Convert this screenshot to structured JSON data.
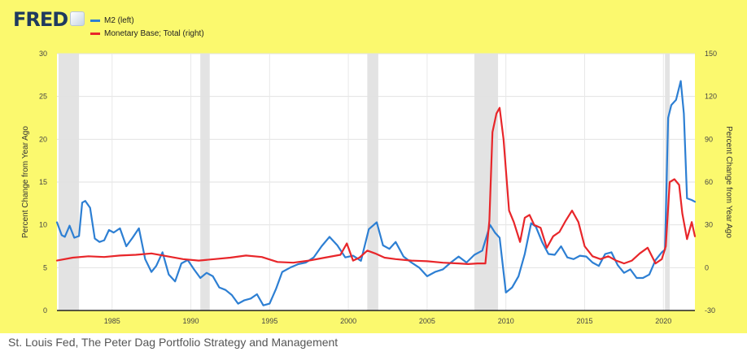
{
  "logo": {
    "text": "FRED"
  },
  "caption": "St. Louis Fed, The Peter Dag Portfolio Strategy and Management",
  "chart_data": {
    "type": "line",
    "xlabel": "",
    "ylabel_left": "Percent Change from Year Ago",
    "ylabel_right": "Percent Change from Year Ago",
    "xlim": [
      1981.5,
      2022.0
    ],
    "ylim_left": [
      0,
      30
    ],
    "ylim_right": [
      -30,
      150
    ],
    "x_ticks": [
      "1985",
      "1990",
      "1995",
      "2000",
      "2005",
      "2010",
      "2015",
      "2020"
    ],
    "y_ticks_left": [
      "0",
      "5",
      "10",
      "15",
      "20",
      "25",
      "30"
    ],
    "y_ticks_right": [
      "-30",
      "0",
      "30",
      "60",
      "90",
      "120",
      "150"
    ],
    "grid": true,
    "legend": "top-left",
    "recessions": [
      [
        1981.6,
        1982.9
      ],
      [
        1990.6,
        1991.2
      ],
      [
        2001.2,
        2001.9
      ],
      [
        2008.0,
        2009.5
      ],
      [
        2020.1,
        2020.4
      ]
    ],
    "series": [
      {
        "name": "M2 (left)",
        "axis": "left",
        "color": "#2d7fd3",
        "x": [
          1981.5,
          1981.8,
          1982.0,
          1982.3,
          1982.6,
          1982.9,
          1983.1,
          1983.3,
          1983.6,
          1983.9,
          1984.2,
          1984.5,
          1984.8,
          1985.1,
          1985.5,
          1985.9,
          1986.3,
          1986.7,
          1987.1,
          1987.5,
          1987.8,
          1988.2,
          1988.6,
          1989.0,
          1989.4,
          1989.8,
          1990.2,
          1990.6,
          1991.0,
          1991.4,
          1991.8,
          1992.2,
          1992.6,
          1993.0,
          1993.4,
          1993.8,
          1994.2,
          1994.6,
          1995.0,
          1995.4,
          1995.8,
          1996.3,
          1996.8,
          1997.3,
          1997.8,
          1998.3,
          1998.8,
          1999.3,
          1999.8,
          2000.3,
          2000.8,
          2001.3,
          2001.8,
          2002.2,
          2002.6,
          2003.0,
          2003.5,
          2004.0,
          2004.5,
          2005.0,
          2005.5,
          2006.0,
          2006.5,
          2007.0,
          2007.5,
          2008.0,
          2008.5,
          2009.0,
          2009.3,
          2009.6,
          2010.0,
          2010.4,
          2010.8,
          2011.2,
          2011.6,
          2011.9,
          2012.3,
          2012.7,
          2013.1,
          2013.5,
          2013.9,
          2014.3,
          2014.7,
          2015.1,
          2015.5,
          2015.9,
          2016.3,
          2016.7,
          2017.1,
          2017.5,
          2017.9,
          2018.3,
          2018.7,
          2019.1,
          2019.5,
          2019.9,
          2020.1,
          2020.3,
          2020.5,
          2020.8,
          2021.1,
          2021.3,
          2021.5,
          2021.8,
          2022.0
        ],
        "values": [
          10.3,
          8.8,
          8.6,
          9.9,
          8.5,
          8.7,
          12.6,
          12.8,
          12.0,
          8.4,
          8.0,
          8.2,
          9.4,
          9.1,
          9.6,
          7.5,
          8.5,
          9.6,
          6.0,
          4.5,
          5.2,
          6.8,
          4.2,
          3.4,
          5.5,
          5.9,
          4.8,
          3.8,
          4.4,
          4.0,
          2.7,
          2.4,
          1.8,
          0.8,
          1.2,
          1.4,
          1.9,
          0.6,
          0.8,
          2.5,
          4.5,
          5.0,
          5.4,
          5.6,
          6.2,
          7.5,
          8.6,
          7.6,
          6.2,
          6.4,
          5.8,
          9.5,
          10.3,
          7.6,
          7.2,
          8.0,
          6.3,
          5.6,
          5.0,
          4.0,
          4.5,
          4.8,
          5.6,
          6.3,
          5.6,
          6.5,
          7.0,
          10.0,
          9.1,
          8.5,
          2.1,
          2.7,
          4.0,
          6.6,
          10.2,
          9.8,
          8.0,
          6.6,
          6.5,
          7.5,
          6.2,
          6.0,
          6.4,
          6.3,
          5.6,
          5.2,
          6.6,
          6.8,
          5.3,
          4.4,
          4.8,
          3.8,
          3.8,
          4.2,
          5.9,
          6.8,
          7.1,
          22.5,
          24.0,
          24.6,
          26.8,
          23.0,
          13.1,
          12.9,
          12.7
        ]
      },
      {
        "name": "Monetary Base; Total (right)",
        "axis": "right",
        "color": "#e8262a",
        "x": [
          1981.5,
          1982.5,
          1983.5,
          1984.5,
          1985.5,
          1986.5,
          1987.5,
          1988.5,
          1989.5,
          1990.5,
          1991.5,
          1992.5,
          1993.5,
          1994.5,
          1995.5,
          1996.5,
          1997.5,
          1998.5,
          1999.5,
          1999.9,
          2000.3,
          2000.7,
          2001.2,
          2001.7,
          2002.3,
          2003.0,
          2004.0,
          2005.0,
          2006.0,
          2007.0,
          2007.6,
          2008.2,
          2008.7,
          2008.95,
          2009.15,
          2009.4,
          2009.6,
          2009.85,
          2010.2,
          2010.5,
          2010.9,
          2011.2,
          2011.5,
          2011.8,
          2012.2,
          2012.6,
          2013.0,
          2013.4,
          2013.8,
          2014.2,
          2014.6,
          2015.0,
          2015.5,
          2016.0,
          2016.5,
          2017.0,
          2017.5,
          2018.0,
          2018.5,
          2019.0,
          2019.5,
          2019.9,
          2020.15,
          2020.4,
          2020.7,
          2021.0,
          2021.2,
          2021.5,
          2021.8,
          2022.0
        ],
        "values": [
          5,
          7,
          8,
          7.5,
          8.5,
          9,
          10,
          8,
          6,
          5,
          6,
          7,
          8.5,
          7.5,
          4,
          3.5,
          5,
          7,
          9,
          17,
          5,
          7,
          12,
          10,
          7,
          6,
          5,
          4.5,
          3.5,
          3,
          2.5,
          3,
          3,
          33,
          95,
          108,
          112,
          90,
          40,
          32,
          18,
          35,
          37,
          30,
          28,
          14,
          22,
          25,
          33,
          40,
          32,
          15,
          8,
          6,
          8,
          5,
          3,
          5,
          10,
          14,
          3,
          6,
          15,
          60,
          62,
          58,
          38,
          20,
          32,
          22
        ]
      }
    ]
  }
}
